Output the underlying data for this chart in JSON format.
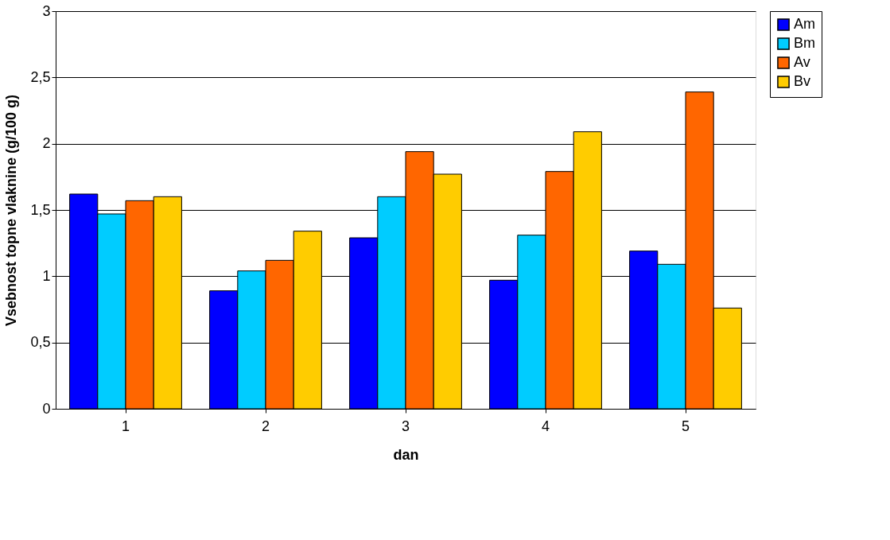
{
  "chart_data": {
    "type": "bar",
    "xlabel": "dan",
    "ylabel": "Vsebnost topne vlaknine (g/100 g)",
    "categories": [
      "1",
      "2",
      "3",
      "4",
      "5"
    ],
    "series": [
      {
        "name": "Am",
        "color": "#0000ff",
        "values": [
          1.62,
          0.89,
          1.29,
          0.97,
          1.19
        ]
      },
      {
        "name": "Bm",
        "color": "#00ccff",
        "values": [
          1.47,
          1.04,
          1.6,
          1.31,
          1.09
        ]
      },
      {
        "name": "Av",
        "color": "#ff6600",
        "values": [
          1.57,
          1.12,
          1.94,
          1.79,
          2.39
        ]
      },
      {
        "name": "Bv",
        "color": "#ffcc00",
        "values": [
          1.6,
          1.34,
          1.77,
          2.09,
          0.76
        ]
      }
    ],
    "ylim": [
      0,
      3
    ],
    "yticks": [
      0,
      {
        "value": 0.5,
        "label": "0,5"
      },
      1,
      {
        "value": 1.5,
        "label": "1,5"
      },
      2,
      {
        "value": 2.5,
        "label": "2,5"
      },
      3
    ],
    "grid": "y",
    "legend": "right"
  }
}
